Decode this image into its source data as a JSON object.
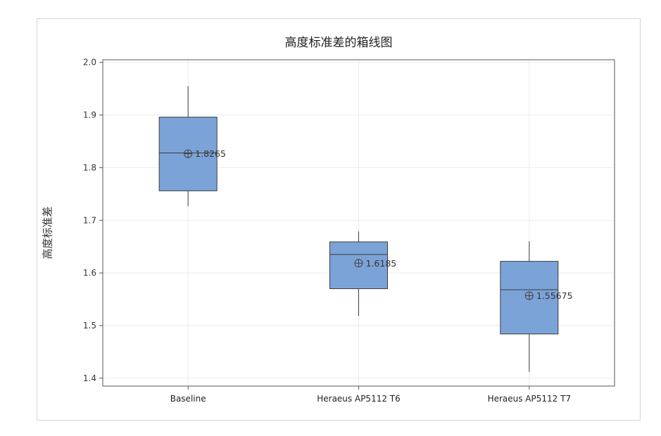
{
  "chart_data": {
    "type": "box",
    "title": "高度标准差的箱线图",
    "xlabel": "",
    "ylabel": "高度标准差",
    "ylim": [
      1.385,
      2.005
    ],
    "yticks": [
      1.4,
      1.5,
      1.6,
      1.7,
      1.8,
      1.9,
      2.0
    ],
    "ytick_labels": [
      "1.4",
      "1.5",
      "1.6",
      "1.7",
      "1.8",
      "1.9",
      "2.0"
    ],
    "grid": true,
    "categories": [
      "Baseline",
      "Heraeus AP5112 T6",
      "Heraeus AP5112 T7"
    ],
    "boxes": [
      {
        "category": "Baseline",
        "min": 1.727,
        "q1": 1.756,
        "median": 1.828,
        "q3": 1.896,
        "max": 1.955,
        "mean": 1.8265,
        "mean_label": "1.8265"
      },
      {
        "category": "Heraeus AP5112 T6",
        "min": 1.518,
        "q1": 1.57,
        "median": 1.635,
        "q3": 1.659,
        "max": 1.679,
        "mean": 1.6185,
        "mean_label": "1.6185"
      },
      {
        "category": "Heraeus AP5112 T7",
        "min": 1.412,
        "q1": 1.484,
        "median": 1.568,
        "q3": 1.622,
        "max": 1.66,
        "mean": 1.55675,
        "mean_label": "1.55675"
      }
    ],
    "colors": {
      "box_fill": "#7ba3d8",
      "box_stroke": "#3b3b3b",
      "grid": "#ebebeb",
      "axis": "#555555"
    }
  }
}
